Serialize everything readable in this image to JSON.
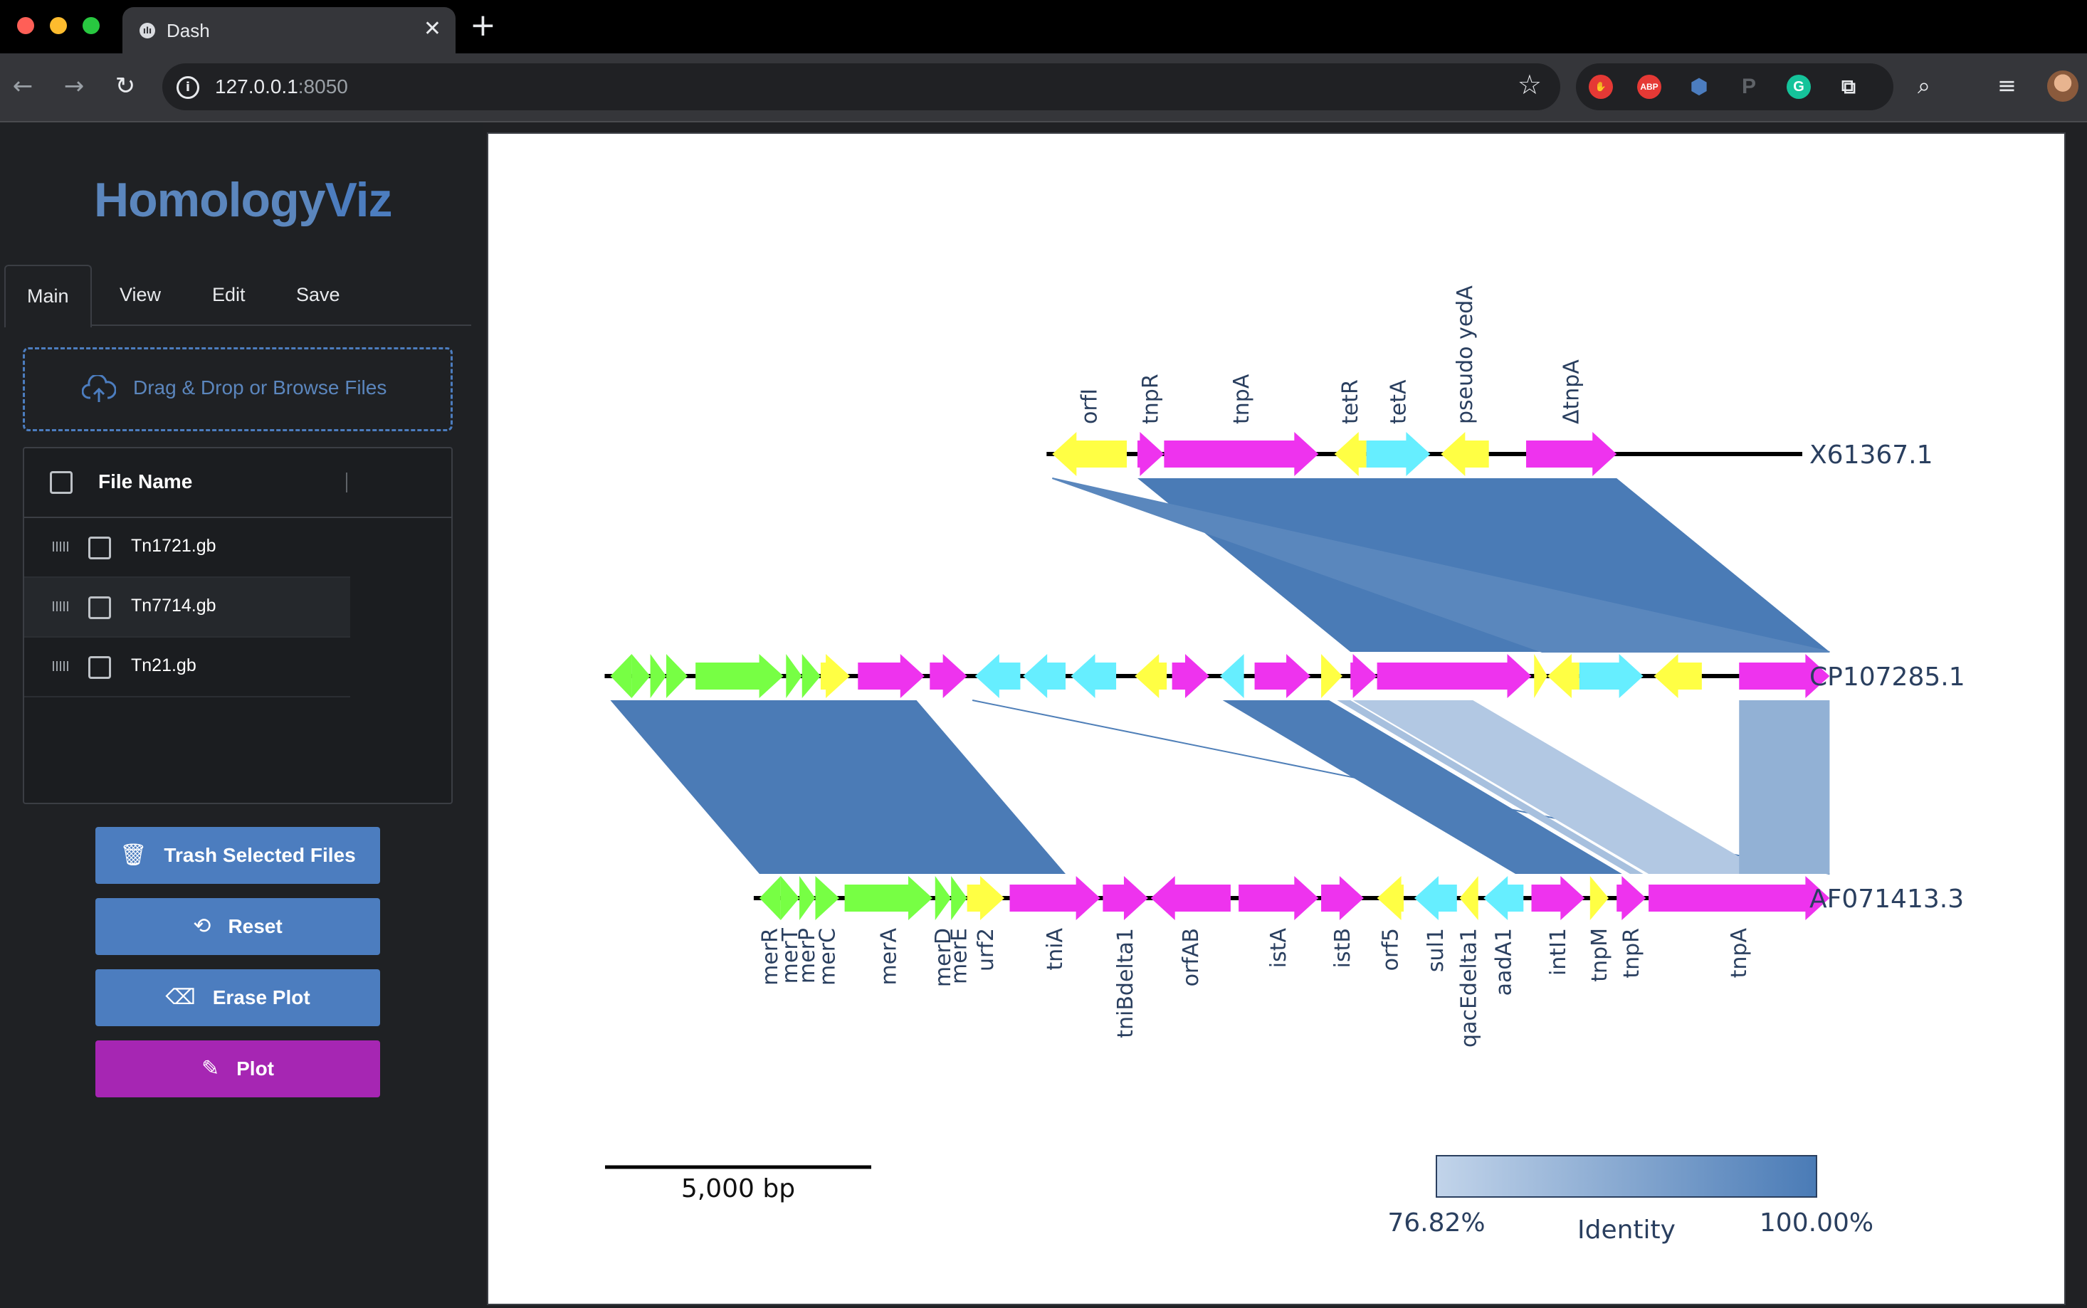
{
  "browser": {
    "tab_title": "Dash",
    "tab_favicon": "ılı",
    "url_host": "127.0.0.1",
    "url_port": ":8050",
    "extensions": [
      "ABP"
    ]
  },
  "app": {
    "logo_text_main": "Homology",
    "logo_text_accent": "Viz",
    "tabs": [
      "Main",
      "View",
      "Edit",
      "Save"
    ],
    "upload_label": "Drag & Drop or Browse Files",
    "table_header": "File Name",
    "files": [
      "Tn1721.gb",
      "Tn7714.gb",
      "Tn21.gb"
    ],
    "buttons": {
      "trash": "Trash Selected Files",
      "reset": "Reset",
      "erase": "Erase Plot",
      "plot": "Plot"
    }
  },
  "colors": {
    "accent_blue": "#4c7dbf",
    "plot_purple": "#a626b3",
    "gene_green": "#77ff44",
    "gene_yellow": "#ffff44",
    "gene_magenta": "#ee33ee",
    "gene_cyan": "#66eeff",
    "identity_min_color": "#c2d4ea",
    "identity_max_color": "#4a7bb6"
  },
  "chart_data": {
    "type": "genome-alignment",
    "tracks": [
      {
        "name": "X61367.1",
        "genes": [
          {
            "label": "orfI",
            "start": 8400,
            "end": 9800,
            "strand": -1,
            "color": "yellow"
          },
          {
            "label": "tnpR",
            "start": 10000,
            "end": 10500,
            "strand": 1,
            "color": "magenta"
          },
          {
            "label": "tnpA",
            "start": 10500,
            "end": 13400,
            "strand": 1,
            "color": "magenta"
          },
          {
            "label": "tetR",
            "start": 13700,
            "end": 14300,
            "strand": -1,
            "color": "yellow"
          },
          {
            "label": "tetA",
            "start": 14300,
            "end": 15500,
            "strand": 1,
            "color": "cyan"
          },
          {
            "label": "pseudo yedA",
            "start": 15700,
            "end": 16600,
            "strand": -1,
            "color": "yellow"
          },
          {
            "label": "ΔtnpA",
            "start": 17300,
            "end": 19000,
            "strand": 1,
            "color": "magenta"
          }
        ]
      },
      {
        "name": "CP107285.1",
        "genes": [
          {
            "label": "",
            "start": 100,
            "end": 500,
            "strand": -1,
            "color": "green"
          },
          {
            "label": "",
            "start": 500,
            "end": 850,
            "strand": 1,
            "color": "green"
          },
          {
            "label": "",
            "start": 850,
            "end": 1150,
            "strand": 1,
            "color": "green"
          },
          {
            "label": "",
            "start": 1150,
            "end": 1550,
            "strand": 1,
            "color": "green"
          },
          {
            "label": "",
            "start": 1700,
            "end": 3350,
            "strand": 1,
            "color": "green"
          },
          {
            "label": "",
            "start": 3400,
            "end": 3700,
            "strand": 1,
            "color": "green"
          },
          {
            "label": "",
            "start": 3700,
            "end": 4050,
            "strand": 1,
            "color": "green"
          },
          {
            "label": "",
            "start": 4050,
            "end": 4600,
            "strand": 1,
            "color": "yellow"
          },
          {
            "label": "",
            "start": 4750,
            "end": 6000,
            "strand": 1,
            "color": "magenta"
          },
          {
            "label": "",
            "start": 6100,
            "end": 6800,
            "strand": 1,
            "color": "magenta"
          },
          {
            "label": "",
            "start": 6950,
            "end": 7800,
            "strand": -1,
            "color": "cyan"
          },
          {
            "label": "",
            "start": 7850,
            "end": 8650,
            "strand": -1,
            "color": "cyan"
          },
          {
            "label": "",
            "start": 8750,
            "end": 9600,
            "strand": -1,
            "color": "cyan"
          },
          {
            "label": "",
            "start": 9950,
            "end": 10550,
            "strand": -1,
            "color": "yellow"
          },
          {
            "label": "",
            "start": 10650,
            "end": 11350,
            "strand": 1,
            "color": "magenta"
          },
          {
            "label": "",
            "start": 11550,
            "end": 12000,
            "strand": -1,
            "color": "cyan"
          },
          {
            "label": "",
            "start": 12200,
            "end": 13250,
            "strand": 1,
            "color": "magenta"
          },
          {
            "label": "",
            "start": 13450,
            "end": 13850,
            "strand": 1,
            "color": "yellow"
          },
          {
            "label": "",
            "start": 14000,
            "end": 14500,
            "strand": 1,
            "color": "magenta"
          },
          {
            "label": "",
            "start": 14500,
            "end": 17400,
            "strand": 1,
            "color": "magenta"
          },
          {
            "label": "",
            "start": 17450,
            "end": 17700,
            "strand": 1,
            "color": "yellow"
          },
          {
            "label": "",
            "start": 17700,
            "end": 18300,
            "strand": -1,
            "color": "yellow"
          },
          {
            "label": "",
            "start": 18300,
            "end": 19500,
            "strand": 1,
            "color": "cyan"
          },
          {
            "label": "",
            "start": 19700,
            "end": 20600,
            "strand": -1,
            "color": "yellow"
          },
          {
            "label": "",
            "start": 21300,
            "end": 23000,
            "strand": 1,
            "color": "magenta"
          }
        ]
      },
      {
        "name": "AF071413.3",
        "genes": [
          {
            "label": "merR",
            "start": 2900,
            "end": 3300,
            "strand": -1,
            "color": "green"
          },
          {
            "label": "merT",
            "start": 3300,
            "end": 3650,
            "strand": 1,
            "color": "green"
          },
          {
            "label": "merP",
            "start": 3650,
            "end": 3950,
            "strand": 1,
            "color": "green"
          },
          {
            "label": "merC",
            "start": 3950,
            "end": 4400,
            "strand": 1,
            "color": "green"
          },
          {
            "label": "merA",
            "start": 4500,
            "end": 6150,
            "strand": 1,
            "color": "green"
          },
          {
            "label": "merD",
            "start": 6200,
            "end": 6500,
            "strand": 1,
            "color": "green"
          },
          {
            "label": "merE",
            "start": 6500,
            "end": 6800,
            "strand": 1,
            "color": "green"
          },
          {
            "label": "urf2",
            "start": 6800,
            "end": 7500,
            "strand": 1,
            "color": "yellow"
          },
          {
            "label": "tniA",
            "start": 7600,
            "end": 9300,
            "strand": 1,
            "color": "magenta"
          },
          {
            "label": "tniBdelta1",
            "start": 9350,
            "end": 10200,
            "strand": 1,
            "color": "magenta"
          },
          {
            "label": "orfAB",
            "start": 10250,
            "end": 11750,
            "strand": -1,
            "color": "magenta"
          },
          {
            "label": "istA",
            "start": 11900,
            "end": 13400,
            "strand": 1,
            "color": "magenta"
          },
          {
            "label": "istB",
            "start": 13450,
            "end": 14250,
            "strand": 1,
            "color": "magenta"
          },
          {
            "label": "orf5",
            "start": 14500,
            "end": 15000,
            "strand": -1,
            "color": "yellow"
          },
          {
            "label": "sul1",
            "start": 15200,
            "end": 16000,
            "strand": -1,
            "color": "cyan"
          },
          {
            "label": "qacEdelta1",
            "start": 16050,
            "end": 16400,
            "strand": -1,
            "color": "yellow"
          },
          {
            "label": "aadA1",
            "start": 16500,
            "end": 17250,
            "strand": -1,
            "color": "cyan"
          },
          {
            "label": "intI1",
            "start": 17400,
            "end": 18400,
            "strand": 1,
            "color": "magenta"
          },
          {
            "label": "tnpM",
            "start": 18500,
            "end": 18850,
            "strand": 1,
            "color": "yellow"
          },
          {
            "label": "tnpR",
            "start": 19000,
            "end": 19550,
            "strand": 1,
            "color": "magenta"
          },
          {
            "label": "tnpA",
            "start": 19600,
            "end": 23000,
            "strand": 1,
            "color": "magenta"
          }
        ]
      }
    ],
    "alignments": [
      {
        "track_a": "X61367.1",
        "a_start": 10000,
        "a_end": 19000,
        "track_b": "CP107285.1",
        "b_start": 14000,
        "b_end": 23000,
        "identity": 100.0
      },
      {
        "track_a": "X61367.1",
        "a_start": 8400,
        "a_end": 8400,
        "track_b": "CP107285.1",
        "b_start": 17600,
        "b_end": 23000,
        "identity": 97.0
      },
      {
        "track_a": "CP107285.1",
        "a_start": 100,
        "a_end": 5850,
        "track_b": "AF071413.3",
        "b_start": 2900,
        "b_end": 8650,
        "identity": 99.9
      },
      {
        "track_a": "CP107285.1",
        "a_start": 6900,
        "a_end": 6900,
        "track_b": "AF071413.3",
        "b_start": 23000,
        "b_end": 23000,
        "identity": 99.0
      },
      {
        "track_a": "CP107285.1",
        "a_start": 11600,
        "a_end": 13600,
        "track_b": "AF071413.3",
        "b_start": 17100,
        "b_end": 19100,
        "identity": 99.5
      },
      {
        "track_a": "CP107285.1",
        "a_start": 13750,
        "a_end": 14000,
        "track_b": "AF071413.3",
        "b_start": 19250,
        "b_end": 19500,
        "identity": 82.0
      },
      {
        "track_a": "CP107285.1",
        "a_start": 14050,
        "a_end": 16300,
        "track_b": "AF071413.3",
        "b_start": 19600,
        "b_end": 21850,
        "identity": 80.0
      },
      {
        "track_a": "CP107285.1",
        "a_start": 21300,
        "a_end": 23000,
        "track_b": "AF071413.3",
        "b_start": 21300,
        "b_end": 23000,
        "identity": 86.0
      }
    ],
    "scale_bar_label": "5,000 bp",
    "scale_bar_length": 5000,
    "colorbar": {
      "min_label": "76.82%",
      "max_label": "100.00%",
      "title": "Identity",
      "min": 76.82,
      "max": 100.0
    }
  }
}
